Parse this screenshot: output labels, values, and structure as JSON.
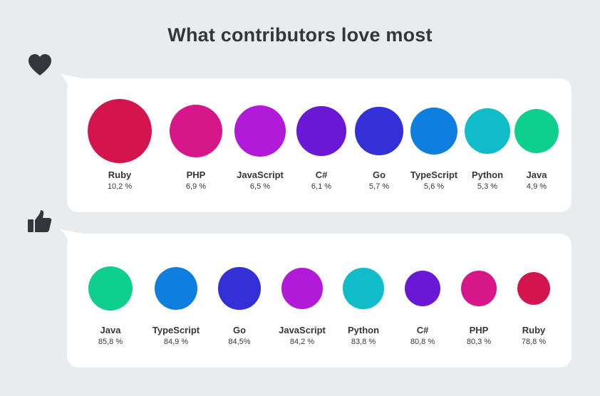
{
  "title": "What contributors love most",
  "chart_data": [
    {
      "type": "bubble",
      "icon": "heart-icon",
      "categories": [
        "Ruby",
        "PHP",
        "JavaScript",
        "C#",
        "Go",
        "TypeScript",
        "Python",
        "Java"
      ],
      "values": [
        10.2,
        6.9,
        6.5,
        6.1,
        5.7,
        5.6,
        5.3,
        4.9
      ],
      "labels": [
        "10,2 %",
        "6,9 %",
        "6,5 %",
        "6,1 %",
        "5,7 %",
        "5,6 %",
        "5,3 %",
        "4,9 %"
      ],
      "colors": [
        "#d4144f",
        "#d7168a",
        "#b01ad8",
        "#6a17d6",
        "#3330d8",
        "#0f7fdf",
        "#0fbcc8",
        "#0ecf8d"
      ]
    },
    {
      "type": "bubble",
      "icon": "thumbs-up-icon",
      "categories": [
        "Java",
        "TypeScript",
        "Go",
        "JavaScript",
        "Python",
        "C#",
        "PHP",
        "Ruby"
      ],
      "values": [
        85.8,
        84.9,
        84.5,
        84.2,
        83.8,
        80.8,
        80.3,
        78.8
      ],
      "labels": [
        "85,8 %",
        "84,9 %",
        "84,5%",
        "84,2 %",
        "83,8 %",
        "80,8 %",
        "80,3 %",
        "78,8 %"
      ],
      "colors": [
        "#0ecf8d",
        "#0f7fdf",
        "#3330d8",
        "#b01ad8",
        "#0fbcc8",
        "#6a17d6",
        "#d7168a",
        "#d4144f"
      ]
    }
  ]
}
